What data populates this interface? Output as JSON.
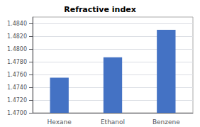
{
  "chart_data": {
    "type": "bar",
    "title": "Refractive index",
    "categories": [
      "Hexane",
      "Ethanol",
      "Benzene"
    ],
    "values": [
      1.4755,
      1.4787,
      1.483
    ],
    "color": "#4472C4",
    "ylim": [
      1.47,
      1.485
    ],
    "yticks": [
      {
        "value": 1.47,
        "label": "1.4700"
      },
      {
        "value": 1.472,
        "label": "1.4720"
      },
      {
        "value": 1.474,
        "label": "1.4740"
      },
      {
        "value": 1.476,
        "label": "1.4760"
      },
      {
        "value": 1.478,
        "label": "1.4780"
      },
      {
        "value": 1.48,
        "label": "1.4800"
      },
      {
        "value": 1.482,
        "label": "1.4820"
      },
      {
        "value": 1.484,
        "label": "1.4840"
      }
    ],
    "grid": true
  }
}
